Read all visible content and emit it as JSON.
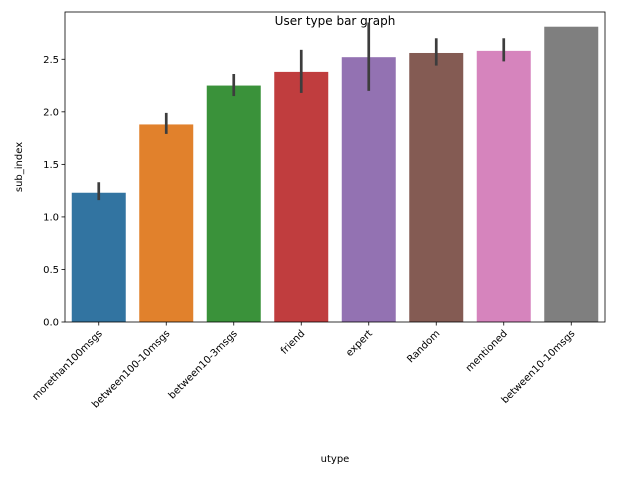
{
  "chart_data": {
    "type": "bar",
    "title": "User type bar graph",
    "xlabel": "utype",
    "ylabel": "sub_index",
    "ylim": [
      0,
      2.95
    ],
    "yticks": [
      0.0,
      0.5,
      1.0,
      1.5,
      2.0,
      2.5
    ],
    "ytick_labels": [
      "0.0",
      "0.5",
      "1.0",
      "1.5",
      "2.0",
      "2.5"
    ],
    "grid": false,
    "categories": [
      "morethan100msgs",
      "between100-10msgs",
      "between10-3msgs",
      "friend",
      "expert",
      "Random",
      "mentioned",
      "between10-10msgs"
    ],
    "values": [
      1.23,
      1.88,
      2.25,
      2.38,
      2.52,
      2.56,
      2.58,
      2.81
    ],
    "error_low": [
      1.16,
      1.79,
      2.15,
      2.18,
      2.2,
      2.44,
      2.48,
      2.81
    ],
    "error_high": [
      1.33,
      1.99,
      2.36,
      2.59,
      2.85,
      2.7,
      2.7,
      2.81
    ],
    "colors": [
      "#3274a1",
      "#e1812c",
      "#3a923a",
      "#c03d3e",
      "#9372b2",
      "#845b53",
      "#d684bd",
      "#7f7f7f"
    ]
  }
}
